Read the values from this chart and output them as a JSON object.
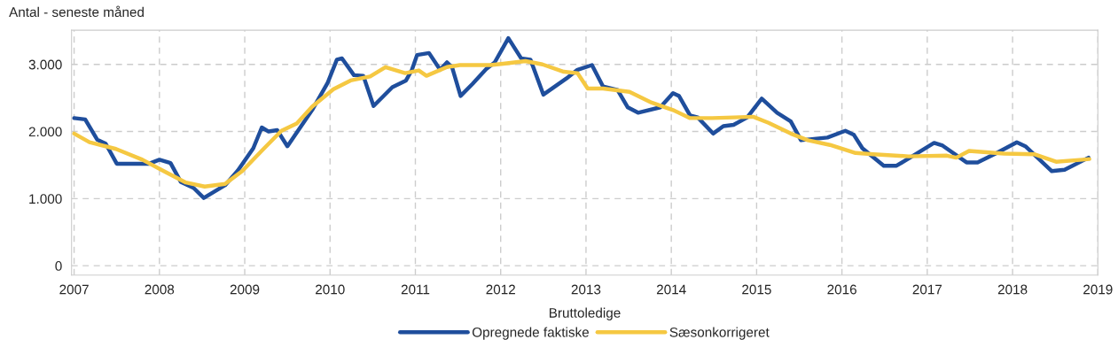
{
  "chart_data": {
    "type": "line",
    "ylabel": "Antal - seneste måned",
    "legend_title": "Bruttoledige",
    "legend": "bottom",
    "grid": true,
    "line_style": "solid",
    "marker": "none",
    "xlim": [
      2006.97,
      2019.0
    ],
    "xticks": [
      2007,
      2008,
      2009,
      2010,
      2011,
      2012,
      2013,
      2014,
      2015,
      2016,
      2017,
      2018,
      2019
    ],
    "ylim": [
      -140,
      3510
    ],
    "yticks": [
      {
        "value": 0,
        "label": "0"
      },
      {
        "value": 1000,
        "label": "1.000"
      },
      {
        "value": 2000,
        "label": "2.000"
      },
      {
        "value": 3000,
        "label": "3.000"
      }
    ],
    "series": [
      {
        "name": "Opregnede faktiske",
        "color": "#1f4e9c",
        "x": [
          2007.0,
          2007.13,
          2007.27,
          2007.37,
          2007.5,
          2007.88,
          2008.0,
          2008.13,
          2008.25,
          2008.4,
          2008.52,
          2008.77,
          2008.92,
          2009.1,
          2009.2,
          2009.28,
          2009.38,
          2009.5,
          2009.79,
          2009.97,
          2010.08,
          2010.14,
          2010.28,
          2010.39,
          2010.51,
          2010.73,
          2010.89,
          2010.96,
          2011.02,
          2011.16,
          2011.29,
          2011.37,
          2011.43,
          2011.53,
          2011.67,
          2011.83,
          2011.93,
          2012.09,
          2012.24,
          2012.35,
          2012.5,
          2012.77,
          2012.9,
          2013.07,
          2013.2,
          2013.37,
          2013.49,
          2013.61,
          2013.87,
          2014.02,
          2014.09,
          2014.22,
          2014.31,
          2014.49,
          2014.61,
          2014.73,
          2014.89,
          2015.06,
          2015.24,
          2015.4,
          2015.52,
          2015.83,
          2016.04,
          2016.14,
          2016.24,
          2016.49,
          2016.64,
          2016.81,
          2017.08,
          2017.18,
          2017.46,
          2017.59,
          2017.8,
          2018.05,
          2018.15,
          2018.46,
          2018.61,
          2018.89
        ],
        "values": [
          2200,
          2180,
          1880,
          1820,
          1520,
          1520,
          1580,
          1530,
          1250,
          1160,
          1010,
          1200,
          1420,
          1750,
          2060,
          2000,
          2020,
          1780,
          2320,
          2720,
          3070,
          3090,
          2840,
          2830,
          2380,
          2660,
          2760,
          2920,
          3140,
          3170,
          2920,
          3030,
          2960,
          2530,
          2710,
          2930,
          3030,
          3390,
          3090,
          3070,
          2550,
          2790,
          2920,
          2990,
          2670,
          2620,
          2360,
          2280,
          2360,
          2570,
          2530,
          2240,
          2210,
          1970,
          2080,
          2100,
          2210,
          2490,
          2280,
          2150,
          1870,
          1910,
          2010,
          1950,
          1750,
          1490,
          1490,
          1620,
          1830,
          1790,
          1540,
          1540,
          1670,
          1840,
          1780,
          1410,
          1430,
          1610
        ]
      },
      {
        "name": "Sæsonkorrigeret",
        "color": "#f5c842",
        "x": [
          2007.0,
          2007.18,
          2007.49,
          2007.8,
          2008.05,
          2008.31,
          2008.53,
          2008.77,
          2008.97,
          2009.22,
          2009.43,
          2009.61,
          2009.79,
          2010.04,
          2010.24,
          2010.47,
          2010.65,
          2010.88,
          2011.04,
          2011.13,
          2011.37,
          2011.52,
          2011.88,
          2012.03,
          2012.29,
          2012.49,
          2012.74,
          2012.9,
          2013.02,
          2013.2,
          2013.51,
          2013.77,
          2014.02,
          2014.22,
          2014.48,
          2014.73,
          2014.96,
          2015.14,
          2015.4,
          2015.6,
          2015.86,
          2016.16,
          2016.37,
          2016.78,
          2017.23,
          2017.34,
          2017.49,
          2017.9,
          2018.26,
          2018.51,
          2018.82,
          2018.9
        ],
        "values": [
          1970,
          1840,
          1740,
          1580,
          1410,
          1240,
          1180,
          1220,
          1410,
          1740,
          2010,
          2120,
          2370,
          2630,
          2760,
          2820,
          2960,
          2870,
          2910,
          2830,
          2960,
          2990,
          2990,
          3010,
          3050,
          3000,
          2890,
          2870,
          2640,
          2640,
          2590,
          2430,
          2320,
          2200,
          2200,
          2210,
          2220,
          2130,
          1970,
          1870,
          1800,
          1680,
          1660,
          1630,
          1640,
          1610,
          1710,
          1670,
          1660,
          1550,
          1580,
          1590
        ]
      }
    ]
  }
}
